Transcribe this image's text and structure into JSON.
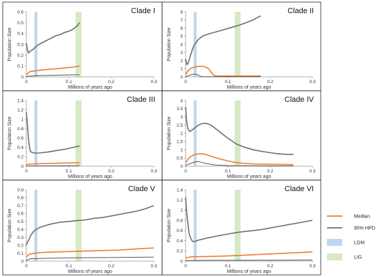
{
  "colors": {
    "median": "#ED7D31",
    "hpd": "#6E6E6E",
    "lower": "#555555",
    "lgm": "#BDD7EE",
    "lig": "#D6EAC5"
  },
  "legend": {
    "items": [
      {
        "label": "Median",
        "kind": "line",
        "color": "#ED7D31"
      },
      {
        "label": "95% HPD",
        "kind": "line",
        "color": "#6E6E6E"
      },
      {
        "label": "LGM",
        "kind": "box",
        "color": "#BDD7EE"
      },
      {
        "label": "LIG",
        "kind": "box",
        "color": "#D6EAC5"
      }
    ]
  },
  "chart_data": [
    {
      "type": "line",
      "title": "Clade I",
      "xlabel": "Millions of years ago",
      "ylabel": "Population Size",
      "xlim": [
        0,
        0.3
      ],
      "ylim": [
        0,
        0.6
      ],
      "xticks": [
        "0",
        "0.1",
        "0.2",
        "0.3"
      ],
      "yticks": [
        "0",
        "0.1",
        "0.2",
        "0.3",
        "0.4",
        "0.5",
        "0.6"
      ],
      "bands": [
        {
          "name": "LGM",
          "x": [
            0.019,
            0.026
          ]
        },
        {
          "name": "LIG",
          "x": [
            0.116,
            0.13
          ]
        }
      ],
      "series": [
        {
          "name": "95% HPD",
          "x": [
            0,
            0.002,
            0.005,
            0.01,
            0.015,
            0.02,
            0.03,
            0.04,
            0.05,
            0.06,
            0.07,
            0.08,
            0.09,
            0.1,
            0.11,
            0.12,
            0.125
          ],
          "y": [
            0.31,
            0.26,
            0.22,
            0.24,
            0.25,
            0.27,
            0.3,
            0.32,
            0.34,
            0.36,
            0.38,
            0.39,
            0.41,
            0.42,
            0.44,
            0.47,
            0.5
          ]
        },
        {
          "name": "Median",
          "x": [
            0,
            0.005,
            0.01,
            0.02,
            0.03,
            0.05,
            0.07,
            0.09,
            0.11,
            0.125
          ],
          "y": [
            0.02,
            0.04,
            0.05,
            0.055,
            0.06,
            0.068,
            0.075,
            0.082,
            0.09,
            0.1
          ]
        },
        {
          "name": "Lower",
          "x": [
            0,
            0.03,
            0.06,
            0.09,
            0.125
          ],
          "y": [
            0.005,
            0.012,
            0.015,
            0.017,
            0.02
          ]
        }
      ]
    },
    {
      "type": "line",
      "title": "Clade II",
      "xlabel": "Millions of years ago",
      "ylabel": "Population Size",
      "xlim": [
        0,
        0.3
      ],
      "ylim": [
        0,
        8
      ],
      "xticks": [
        "0",
        "0.1",
        "0.2",
        "0.3"
      ],
      "yticks": [
        "0",
        "1",
        "2",
        "3",
        "4",
        "5",
        "6",
        "7",
        "8"
      ],
      "bands": [
        {
          "name": "LGM",
          "x": [
            0.019,
            0.026
          ]
        },
        {
          "name": "LIG",
          "x": [
            0.116,
            0.13
          ]
        }
      ],
      "series": [
        {
          "name": "95% HPD",
          "x": [
            0,
            0.003,
            0.006,
            0.01,
            0.015,
            0.02,
            0.03,
            0.04,
            0.05,
            0.07,
            0.09,
            0.11,
            0.13,
            0.15,
            0.16,
            0.17,
            0.178
          ],
          "y": [
            2.2,
            1.5,
            1.7,
            2.4,
            3.2,
            3.9,
            4.6,
            5.0,
            5.2,
            5.5,
            5.8,
            6.1,
            6.4,
            6.8,
            7.0,
            7.3,
            7.5
          ]
        },
        {
          "name": "Median",
          "x": [
            0,
            0.005,
            0.01,
            0.02,
            0.03,
            0.04,
            0.05,
            0.055,
            0.06,
            0.065,
            0.07,
            0.08,
            0.1,
            0.13,
            0.16,
            0.178
          ],
          "y": [
            0.3,
            0.7,
            1.0,
            1.2,
            1.3,
            1.3,
            1.15,
            0.95,
            0.6,
            0.3,
            0.12,
            0.1,
            0.1,
            0.1,
            0.1,
            0.1
          ]
        },
        {
          "name": "Lower",
          "x": [
            0,
            0.005,
            0.01,
            0.015,
            0.02,
            0.025,
            0.03,
            0.035,
            0.04,
            0.06,
            0.1,
            0.178
          ],
          "y": [
            0.05,
            0.1,
            0.2,
            0.3,
            0.35,
            0.3,
            0.2,
            0.08,
            0.03,
            0.02,
            0.02,
            0.02
          ]
        }
      ]
    },
    {
      "type": "line",
      "title": "Clade III",
      "xlabel": "Millions of years ago",
      "ylabel": "Population Size",
      "xlim": [
        0,
        0.3
      ],
      "ylim": [
        0,
        1.4
      ],
      "xticks": [
        "0",
        "0.1",
        "0.2",
        "0.3"
      ],
      "yticks": [
        "0",
        "0.2",
        "0.4",
        "0.6",
        "0.8",
        "1",
        "1.2",
        "1.4"
      ],
      "bands": [
        {
          "name": "LGM",
          "x": [
            0.019,
            0.026
          ]
        },
        {
          "name": "LIG",
          "x": [
            0.116,
            0.13
          ]
        }
      ],
      "series": [
        {
          "name": "95% HPD",
          "x": [
            0,
            0.002,
            0.004,
            0.006,
            0.008,
            0.01,
            0.015,
            0.02,
            0.03,
            0.05,
            0.07,
            0.09,
            0.11,
            0.125
          ],
          "y": [
            1.15,
            0.95,
            0.7,
            0.5,
            0.38,
            0.31,
            0.29,
            0.28,
            0.28,
            0.3,
            0.33,
            0.36,
            0.4,
            0.43
          ]
        },
        {
          "name": "Median",
          "x": [
            0,
            0.005,
            0.01,
            0.02,
            0.04,
            0.06,
            0.08,
            0.1,
            0.125
          ],
          "y": [
            0.03,
            0.04,
            0.045,
            0.05,
            0.055,
            0.06,
            0.065,
            0.07,
            0.075
          ]
        },
        {
          "name": "Lower",
          "x": [
            0,
            0.05,
            0.125
          ],
          "y": [
            0.005,
            0.008,
            0.01
          ]
        }
      ]
    },
    {
      "type": "line",
      "title": "Clade IV",
      "xlabel": "Millions of years ago",
      "ylabel": "Population Size",
      "xlim": [
        0,
        0.3
      ],
      "ylim": [
        0,
        4
      ],
      "xticks": [
        "0",
        "0.1",
        "0.2",
        "0.3"
      ],
      "yticks": [
        "0",
        "0.5",
        "1",
        "1.5",
        "2",
        "2.5",
        "3",
        "3.5",
        "4"
      ],
      "bands": [
        {
          "name": "LGM",
          "x": [
            0.019,
            0.026
          ]
        },
        {
          "name": "LIG",
          "x": [
            0.116,
            0.13
          ]
        }
      ],
      "series": [
        {
          "name": "95% HPD",
          "x": [
            0,
            0.002,
            0.005,
            0.01,
            0.02,
            0.03,
            0.04,
            0.05,
            0.06,
            0.07,
            0.08,
            0.1,
            0.12,
            0.14,
            0.16,
            0.18,
            0.2,
            0.22,
            0.24,
            0.255
          ],
          "y": [
            3.6,
            2.8,
            2.3,
            2.1,
            2.3,
            2.5,
            2.6,
            2.6,
            2.5,
            2.3,
            2.1,
            1.7,
            1.35,
            1.15,
            1.0,
            0.9,
            0.82,
            0.75,
            0.72,
            0.72
          ]
        },
        {
          "name": "Median",
          "x": [
            0,
            0.005,
            0.01,
            0.02,
            0.03,
            0.04,
            0.05,
            0.06,
            0.08,
            0.1,
            0.12,
            0.14,
            0.17,
            0.2,
            0.23,
            0.255
          ],
          "y": [
            0.2,
            0.4,
            0.55,
            0.7,
            0.75,
            0.75,
            0.7,
            0.6,
            0.45,
            0.32,
            0.22,
            0.17,
            0.13,
            0.12,
            0.11,
            0.1
          ]
        },
        {
          "name": "Lower",
          "x": [
            0,
            0.01,
            0.02,
            0.03,
            0.04,
            0.05,
            0.07,
            0.1,
            0.15,
            0.2,
            0.255
          ],
          "y": [
            0.05,
            0.15,
            0.25,
            0.28,
            0.22,
            0.15,
            0.07,
            0.04,
            0.03,
            0.02,
            0.02
          ]
        }
      ]
    },
    {
      "type": "line",
      "title": "Clade V",
      "xlabel": "Millions of years ago",
      "ylabel": "Population Size",
      "xlim": [
        0,
        0.3
      ],
      "ylim": [
        0,
        0.9
      ],
      "xticks": [
        "0",
        "0.1",
        "0.2",
        "0.3"
      ],
      "yticks": [
        "0",
        "0.1",
        "0.2",
        "0.3",
        "0.4",
        "0.5",
        "0.6",
        "0.7",
        "0.8",
        "0.9"
      ],
      "bands": [
        {
          "name": "LGM",
          "x": [
            0.019,
            0.026
          ]
        },
        {
          "name": "LIG",
          "x": [
            0.116,
            0.13
          ]
        }
      ],
      "series": [
        {
          "name": "95% HPD",
          "x": [
            0,
            0.003,
            0.006,
            0.01,
            0.015,
            0.02,
            0.03,
            0.04,
            0.06,
            0.08,
            0.1,
            0.12,
            0.14,
            0.16,
            0.18,
            0.2,
            0.22,
            0.24,
            0.26,
            0.28,
            0.3
          ],
          "y": [
            0.2,
            0.24,
            0.27,
            0.32,
            0.36,
            0.39,
            0.42,
            0.44,
            0.47,
            0.49,
            0.5,
            0.51,
            0.52,
            0.54,
            0.55,
            0.57,
            0.59,
            0.61,
            0.63,
            0.66,
            0.7
          ]
        },
        {
          "name": "Median",
          "x": [
            0,
            0.005,
            0.01,
            0.02,
            0.04,
            0.07,
            0.1,
            0.13,
            0.16,
            0.19,
            0.22,
            0.25,
            0.28,
            0.3
          ],
          "y": [
            0.05,
            0.08,
            0.09,
            0.1,
            0.11,
            0.115,
            0.12,
            0.125,
            0.13,
            0.135,
            0.14,
            0.15,
            0.16,
            0.165
          ]
        },
        {
          "name": "Lower",
          "x": [
            0,
            0.01,
            0.05,
            0.1,
            0.2,
            0.3
          ],
          "y": [
            0.01,
            0.03,
            0.035,
            0.04,
            0.045,
            0.05
          ]
        }
      ]
    },
    {
      "type": "line",
      "title": "Clade VI",
      "xlabel": "Millions of years ago",
      "ylabel": "Population Size",
      "xlim": [
        0,
        0.3
      ],
      "ylim": [
        0,
        1.4
      ],
      "xticks": [
        "0",
        "0.1",
        "0.2",
        "0.3"
      ],
      "yticks": [
        "0",
        "0.2",
        "0.4",
        "0.6",
        "0.8",
        "1",
        "1.2",
        "1.4"
      ],
      "bands": [
        {
          "name": "LGM",
          "x": [
            0.019,
            0.026
          ]
        },
        {
          "name": "LIG",
          "x": [
            0.116,
            0.13
          ]
        }
      ],
      "series": [
        {
          "name": "95% HPD",
          "x": [
            0,
            0.002,
            0.005,
            0.008,
            0.012,
            0.016,
            0.02,
            0.03,
            0.05,
            0.08,
            0.1,
            0.12,
            0.14,
            0.16,
            0.18,
            0.2,
            0.22,
            0.24,
            0.26,
            0.28,
            0.3
          ],
          "y": [
            1.25,
            1.0,
            0.75,
            0.55,
            0.44,
            0.39,
            0.38,
            0.41,
            0.45,
            0.5,
            0.53,
            0.56,
            0.58,
            0.6,
            0.62,
            0.65,
            0.68,
            0.71,
            0.74,
            0.77,
            0.8
          ]
        },
        {
          "name": "Median",
          "x": [
            0,
            0.01,
            0.02,
            0.05,
            0.1,
            0.15,
            0.2,
            0.25,
            0.3
          ],
          "y": [
            0.06,
            0.08,
            0.085,
            0.09,
            0.1,
            0.12,
            0.14,
            0.16,
            0.18
          ]
        },
        {
          "name": "Lower",
          "x": [
            0,
            0.05,
            0.1,
            0.2,
            0.3
          ],
          "y": [
            0.01,
            0.015,
            0.015,
            0.018,
            0.02
          ]
        }
      ]
    }
  ]
}
